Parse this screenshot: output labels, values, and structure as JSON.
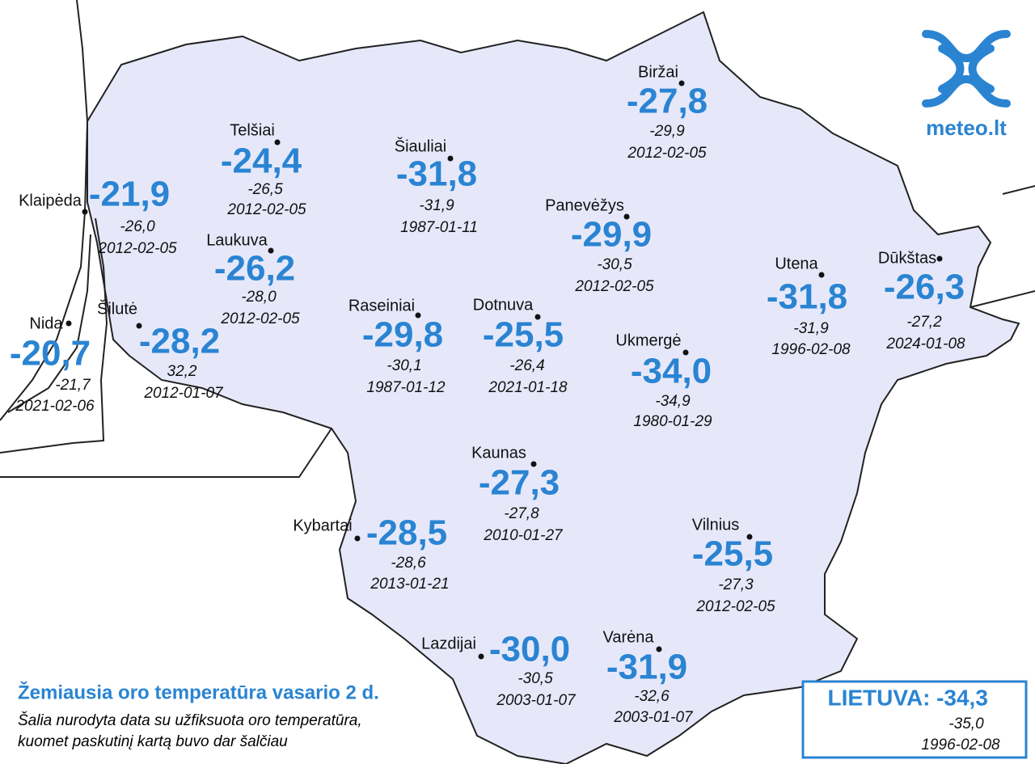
{
  "logo": "meteo.lt",
  "title": "Žemiausia oro temperatūra vasario 2 d.",
  "subtitle_lines": [
    "Šalia nurodyta data su užfiksuota oro temperatūra,",
    "kuomet paskutinį kartą buvo dar šalčiau"
  ],
  "national": {
    "label": "LIETUVA:",
    "temp": "-34,3",
    "record": "-35,0",
    "date": "1996-02-08"
  },
  "stations": [
    {
      "name": "Biržai",
      "temp": "-27,8",
      "record": "-29,9",
      "date": "2012-02-05"
    },
    {
      "name": "Telšiai",
      "temp": "-24,4",
      "record": "-26,5",
      "date": "2012-02-05"
    },
    {
      "name": "Šiauliai",
      "temp": "-31,8",
      "record": "-31,9",
      "date": "1987-01-11"
    },
    {
      "name": "Klaipėda",
      "temp": "-21,9",
      "record": "-26,0",
      "date": "2012-02-05"
    },
    {
      "name": "Panevėžys",
      "temp": "-29,9",
      "record": "-30,5",
      "date": "2012-02-05"
    },
    {
      "name": "Laukuva",
      "temp": "-26,2",
      "record": "-28,0",
      "date": "2012-02-05"
    },
    {
      "name": "Utena",
      "temp": "-31,8",
      "record": "-31,9",
      "date": "1996-02-08"
    },
    {
      "name": "Dūkštas",
      "temp": "-26,3",
      "record": "-27,2",
      "date": "2024-01-08"
    },
    {
      "name": "Raseiniai",
      "temp": "-29,8",
      "record": "-30,1",
      "date": "1987-01-12"
    },
    {
      "name": "Dotnuva",
      "temp": "-25,5",
      "record": "-26,4",
      "date": "2021-01-18"
    },
    {
      "name": "Šilutė",
      "temp": "-28,2",
      "record": "32,2",
      "date": "2012-01-07"
    },
    {
      "name": "Nida",
      "temp": "-20,7",
      "record": "-21,7",
      "date": "2021-02-06"
    },
    {
      "name": "Ukmergė",
      "temp": "-34,0",
      "record": "-34,9",
      "date": "1980-01-29"
    },
    {
      "name": "Kaunas",
      "temp": "-27,3",
      "record": "-27,8",
      "date": "2010-01-27"
    },
    {
      "name": "Kybartai",
      "temp": "-28,5",
      "record": "-28,6",
      "date": "2013-01-21"
    },
    {
      "name": "Vilnius",
      "temp": "-25,5",
      "record": "-27,3",
      "date": "2012-02-05"
    },
    {
      "name": "Lazdijai",
      "temp": "-30,0",
      "record": "-30,5",
      "date": "2003-01-07"
    },
    {
      "name": "Varėna",
      "temp": "-31,9",
      "record": "-32,6",
      "date": "2003-01-07"
    }
  ]
}
